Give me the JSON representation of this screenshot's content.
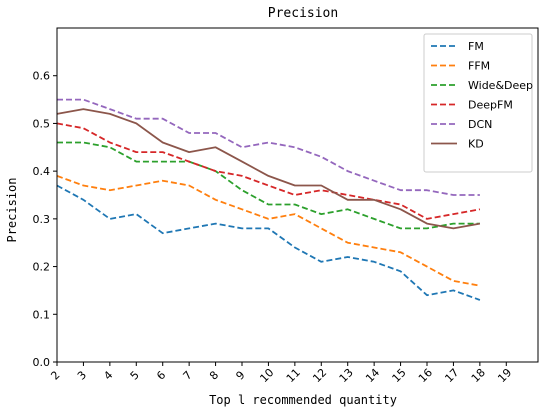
{
  "chart_data": {
    "type": "line",
    "title": "Precision",
    "xlabel": "Top l recommended quantity",
    "ylabel": "Precision",
    "x": [
      2,
      3,
      4,
      5,
      6,
      7,
      8,
      9,
      10,
      11,
      12,
      13,
      14,
      15,
      16,
      17,
      18
    ],
    "x_ticks": [
      2,
      3,
      4,
      5,
      6,
      7,
      8,
      9,
      10,
      11,
      12,
      13,
      14,
      15,
      16,
      17,
      18,
      19
    ],
    "y_ticks": [
      0.0,
      0.1,
      0.2,
      0.3,
      0.4,
      0.5,
      0.6
    ],
    "xlim": [
      2,
      20.2
    ],
    "ylim": [
      0,
      0.7
    ],
    "grid": false,
    "legend_position": "top-right",
    "series": [
      {
        "name": "FM",
        "color": "#1f77b4",
        "style": "dashed",
        "values": [
          0.37,
          0.34,
          0.3,
          0.31,
          0.27,
          0.28,
          0.29,
          0.28,
          0.28,
          0.24,
          0.21,
          0.22,
          0.21,
          0.19,
          0.14,
          0.15,
          0.13
        ]
      },
      {
        "name": "FFM",
        "color": "#ff7f0e",
        "style": "dashed",
        "values": [
          0.39,
          0.37,
          0.36,
          0.37,
          0.38,
          0.37,
          0.34,
          0.32,
          0.3,
          0.31,
          0.28,
          0.25,
          0.24,
          0.23,
          0.2,
          0.17,
          0.16
        ]
      },
      {
        "name": "Wide&Deep",
        "color": "#2ca02c",
        "style": "dashed",
        "values": [
          0.46,
          0.46,
          0.45,
          0.42,
          0.42,
          0.42,
          0.4,
          0.36,
          0.33,
          0.33,
          0.31,
          0.32,
          0.3,
          0.28,
          0.28,
          0.29,
          0.29
        ]
      },
      {
        "name": "DeepFM",
        "color": "#d62728",
        "style": "dashed",
        "values": [
          0.5,
          0.49,
          0.46,
          0.44,
          0.44,
          0.42,
          0.4,
          0.39,
          0.37,
          0.35,
          0.36,
          0.35,
          0.34,
          0.33,
          0.3,
          0.31,
          0.32
        ]
      },
      {
        "name": "DCN",
        "color": "#9467bd",
        "style": "dashed",
        "values": [
          0.55,
          0.55,
          0.53,
          0.51,
          0.51,
          0.48,
          0.48,
          0.45,
          0.46,
          0.45,
          0.43,
          0.4,
          0.38,
          0.36,
          0.36,
          0.35,
          0.35
        ]
      },
      {
        "name": "KD",
        "color": "#8c564b",
        "style": "solid",
        "values": [
          0.52,
          0.53,
          0.52,
          0.5,
          0.46,
          0.44,
          0.45,
          0.42,
          0.39,
          0.37,
          0.37,
          0.34,
          0.34,
          0.32,
          0.29,
          0.28,
          0.29
        ]
      }
    ]
  }
}
